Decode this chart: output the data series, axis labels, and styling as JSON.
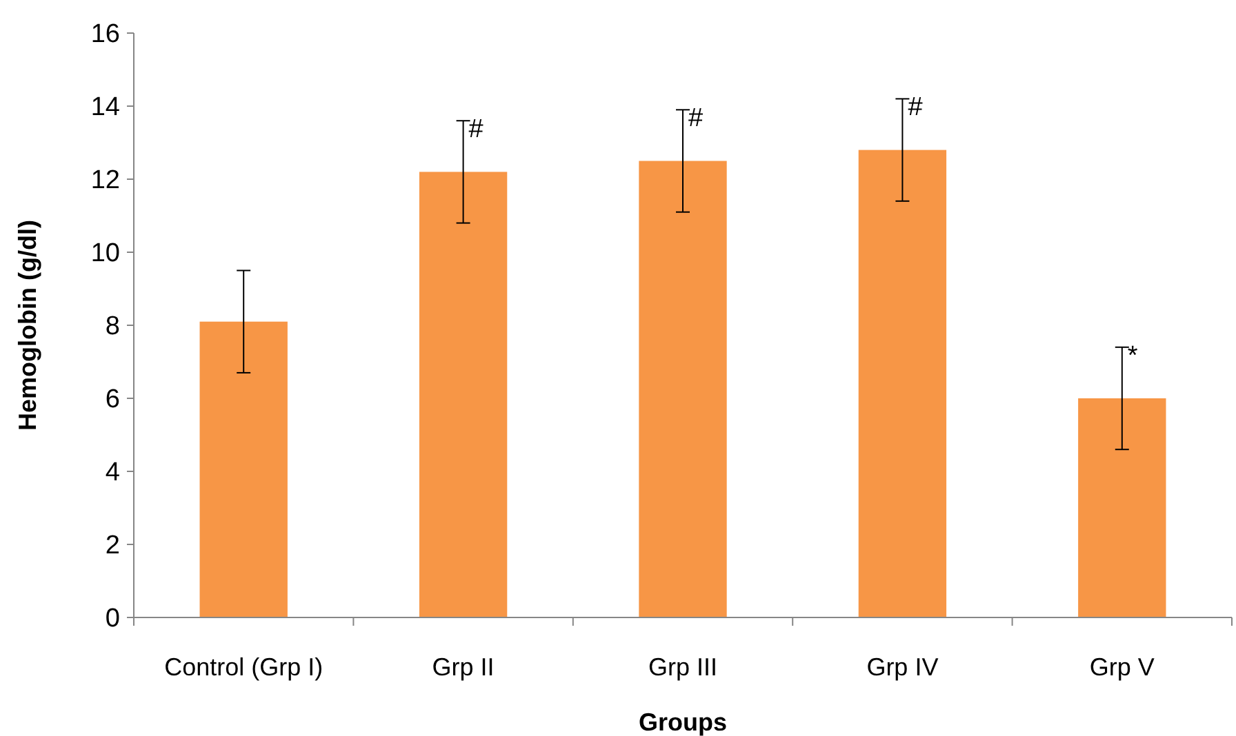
{
  "chart_data": {
    "type": "bar",
    "xlabel": "Groups",
    "ylabel": "Hemoglobin (g/dl)",
    "categories": [
      "Control (Grp I)",
      "Grp II",
      "Grp III",
      "Grp IV",
      "Grp V"
    ],
    "values": [
      8.1,
      12.2,
      12.5,
      12.8,
      6.0
    ],
    "errors": [
      1.4,
      1.4,
      1.4,
      1.4,
      1.4
    ],
    "color": "#f79646",
    "ylim": [
      0,
      16
    ],
    "yticks": [
      0,
      2,
      4,
      6,
      8,
      10,
      12,
      14,
      16
    ],
    "grid": false,
    "annotations": [
      {
        "text": "#",
        "x": "Grp II",
        "y": 13.6
      },
      {
        "text": "#",
        "x": "Grp III",
        "y": 13.9
      },
      {
        "text": "#",
        "x": "Grp IV",
        "y": 14.2
      },
      {
        "text": "*",
        "x": "Grp V",
        "y": 7.4
      }
    ]
  }
}
